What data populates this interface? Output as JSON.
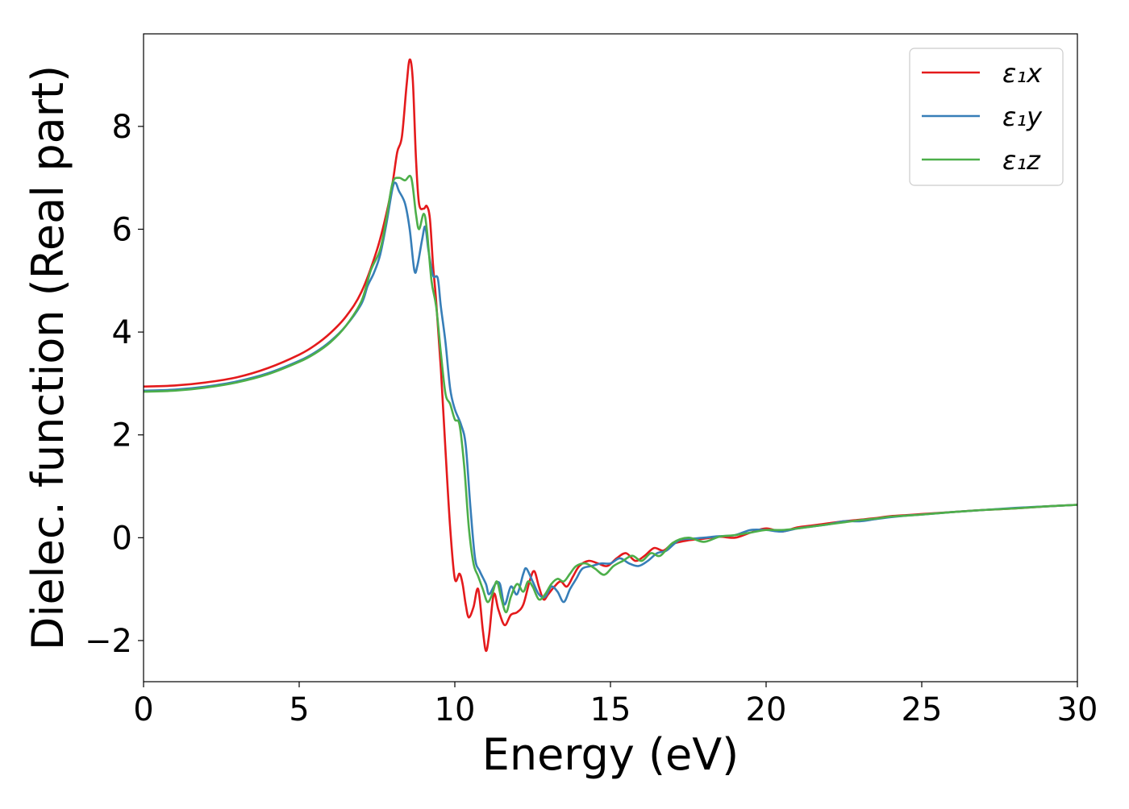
{
  "chart_data": {
    "type": "line",
    "title": "",
    "xlabel": "Energy (eV)",
    "ylabel": "Dielec. function (Real part)",
    "xlim": [
      0,
      30
    ],
    "ylim": [
      -2.8,
      9.8
    ],
    "xticks": [
      {
        "value": 0,
        "label": "0"
      },
      {
        "value": 5,
        "label": "5"
      },
      {
        "value": 10,
        "label": "10"
      },
      {
        "value": 15,
        "label": "15"
      },
      {
        "value": 20,
        "label": "20"
      },
      {
        "value": 25,
        "label": "25"
      },
      {
        "value": 30,
        "label": "30"
      }
    ],
    "yticks": [
      {
        "value": -2,
        "label": "−2"
      },
      {
        "value": 0,
        "label": "0"
      },
      {
        "value": 2,
        "label": "2"
      },
      {
        "value": 4,
        "label": "4"
      },
      {
        "value": 6,
        "label": "6"
      },
      {
        "value": 8,
        "label": "8"
      }
    ],
    "grid": false,
    "legend_position": "top-right",
    "series": [
      {
        "name": "ε₁x",
        "color": "#e41a1c",
        "points": [
          [
            0,
            2.94
          ],
          [
            1,
            2.96
          ],
          [
            2,
            3.02
          ],
          [
            3,
            3.12
          ],
          [
            4,
            3.3
          ],
          [
            5,
            3.56
          ],
          [
            5.5,
            3.74
          ],
          [
            6,
            3.98
          ],
          [
            6.5,
            4.3
          ],
          [
            7,
            4.78
          ],
          [
            7.5,
            5.6
          ],
          [
            7.8,
            6.3
          ],
          [
            8,
            6.9
          ],
          [
            8.15,
            7.5
          ],
          [
            8.3,
            7.8
          ],
          [
            8.45,
            8.8
          ],
          [
            8.55,
            9.3
          ],
          [
            8.65,
            8.9
          ],
          [
            8.75,
            7.4
          ],
          [
            8.85,
            6.5
          ],
          [
            9,
            6.4
          ],
          [
            9.1,
            6.45
          ],
          [
            9.2,
            6.2
          ],
          [
            9.3,
            5.3
          ],
          [
            9.4,
            4.6
          ],
          [
            9.55,
            3.3
          ],
          [
            9.7,
            1.7
          ],
          [
            9.85,
            0.2
          ],
          [
            10,
            -0.8
          ],
          [
            10.15,
            -0.7
          ],
          [
            10.25,
            -0.9
          ],
          [
            10.35,
            -1.3
          ],
          [
            10.45,
            -1.55
          ],
          [
            10.6,
            -1.35
          ],
          [
            10.75,
            -1.0
          ],
          [
            10.9,
            -1.8
          ],
          [
            11,
            -2.2
          ],
          [
            11.1,
            -1.9
          ],
          [
            11.25,
            -1.1
          ],
          [
            11.4,
            -1.4
          ],
          [
            11.6,
            -1.7
          ],
          [
            11.8,
            -1.5
          ],
          [
            12,
            -1.45
          ],
          [
            12.2,
            -1.3
          ],
          [
            12.4,
            -0.85
          ],
          [
            12.55,
            -0.65
          ],
          [
            12.7,
            -0.95
          ],
          [
            12.85,
            -1.2
          ],
          [
            13,
            -1.1
          ],
          [
            13.2,
            -0.95
          ],
          [
            13.4,
            -0.85
          ],
          [
            13.6,
            -0.95
          ],
          [
            13.8,
            -0.75
          ],
          [
            14,
            -0.55
          ],
          [
            14.3,
            -0.45
          ],
          [
            14.6,
            -0.5
          ],
          [
            14.9,
            -0.55
          ],
          [
            15.2,
            -0.4
          ],
          [
            15.5,
            -0.3
          ],
          [
            15.8,
            -0.45
          ],
          [
            16.1,
            -0.35
          ],
          [
            16.4,
            -0.2
          ],
          [
            16.7,
            -0.25
          ],
          [
            17,
            -0.12
          ],
          [
            17.5,
            -0.05
          ],
          [
            18,
            -0.02
          ],
          [
            18.5,
            0.02
          ],
          [
            19,
            0.0
          ],
          [
            19.5,
            0.1
          ],
          [
            20,
            0.18
          ],
          [
            20.5,
            0.12
          ],
          [
            21,
            0.2
          ],
          [
            21.5,
            0.24
          ],
          [
            22,
            0.28
          ],
          [
            22.5,
            0.32
          ],
          [
            23,
            0.35
          ],
          [
            23.5,
            0.38
          ],
          [
            24,
            0.42
          ],
          [
            24.5,
            0.44
          ],
          [
            25,
            0.46
          ],
          [
            25.5,
            0.48
          ],
          [
            26,
            0.5
          ],
          [
            27,
            0.54
          ],
          [
            28,
            0.57
          ],
          [
            29,
            0.61
          ],
          [
            30,
            0.64
          ]
        ]
      },
      {
        "name": "ε₁y",
        "color": "#377eb8",
        "points": [
          [
            0,
            2.86
          ],
          [
            1,
            2.88
          ],
          [
            2,
            2.94
          ],
          [
            3,
            3.04
          ],
          [
            4,
            3.2
          ],
          [
            5,
            3.44
          ],
          [
            5.5,
            3.6
          ],
          [
            6,
            3.82
          ],
          [
            6.5,
            4.12
          ],
          [
            7,
            4.55
          ],
          [
            7.2,
            4.9
          ],
          [
            7.4,
            5.15
          ],
          [
            7.6,
            5.5
          ],
          [
            7.8,
            6.1
          ],
          [
            8,
            6.8
          ],
          [
            8.1,
            6.9
          ],
          [
            8.2,
            6.75
          ],
          [
            8.4,
            6.5
          ],
          [
            8.55,
            6.0
          ],
          [
            8.7,
            5.2
          ],
          [
            8.8,
            5.3
          ],
          [
            8.95,
            5.8
          ],
          [
            9.05,
            6.05
          ],
          [
            9.15,
            5.6
          ],
          [
            9.3,
            5.1
          ],
          [
            9.45,
            5.05
          ],
          [
            9.55,
            4.5
          ],
          [
            9.7,
            3.8
          ],
          [
            9.85,
            2.9
          ],
          [
            10,
            2.5
          ],
          [
            10.2,
            2.2
          ],
          [
            10.35,
            1.8
          ],
          [
            10.5,
            0.6
          ],
          [
            10.65,
            -0.4
          ],
          [
            10.8,
            -0.65
          ],
          [
            11,
            -0.9
          ],
          [
            11.1,
            -1.1
          ],
          [
            11.3,
            -0.9
          ],
          [
            11.45,
            -0.9
          ],
          [
            11.6,
            -1.3
          ],
          [
            11.8,
            -0.95
          ],
          [
            12,
            -1.1
          ],
          [
            12.2,
            -0.7
          ],
          [
            12.3,
            -0.6
          ],
          [
            12.5,
            -0.85
          ],
          [
            12.7,
            -1.1
          ],
          [
            12.9,
            -1.15
          ],
          [
            13.1,
            -0.95
          ],
          [
            13.3,
            -1.05
          ],
          [
            13.5,
            -1.25
          ],
          [
            13.7,
            -1.0
          ],
          [
            13.9,
            -0.8
          ],
          [
            14.1,
            -0.6
          ],
          [
            14.4,
            -0.55
          ],
          [
            14.7,
            -0.5
          ],
          [
            15,
            -0.5
          ],
          [
            15.3,
            -0.4
          ],
          [
            15.6,
            -0.5
          ],
          [
            15.9,
            -0.55
          ],
          [
            16.2,
            -0.45
          ],
          [
            16.5,
            -0.3
          ],
          [
            16.8,
            -0.25
          ],
          [
            17.2,
            -0.05
          ],
          [
            17.6,
            -0.02
          ],
          [
            18,
            0.0
          ],
          [
            18.5,
            0.03
          ],
          [
            19,
            0.05
          ],
          [
            19.5,
            0.15
          ],
          [
            20,
            0.15
          ],
          [
            20.5,
            0.12
          ],
          [
            21,
            0.18
          ],
          [
            21.5,
            0.22
          ],
          [
            22,
            0.26
          ],
          [
            22.5,
            0.32
          ],
          [
            23,
            0.32
          ],
          [
            23.5,
            0.36
          ],
          [
            24,
            0.4
          ],
          [
            24.5,
            0.43
          ],
          [
            25,
            0.45
          ],
          [
            26,
            0.5
          ],
          [
            27,
            0.54
          ],
          [
            28,
            0.58
          ],
          [
            29,
            0.61
          ],
          [
            30,
            0.64
          ]
        ]
      },
      {
        "name": "ε₁z",
        "color": "#4daf4a",
        "points": [
          [
            0,
            2.84
          ],
          [
            1,
            2.86
          ],
          [
            2,
            2.92
          ],
          [
            3,
            3.02
          ],
          [
            4,
            3.18
          ],
          [
            5,
            3.42
          ],
          [
            5.5,
            3.58
          ],
          [
            6,
            3.8
          ],
          [
            6.5,
            4.12
          ],
          [
            7,
            4.6
          ],
          [
            7.3,
            5.2
          ],
          [
            7.6,
            5.6
          ],
          [
            7.8,
            6.2
          ],
          [
            8,
            6.9
          ],
          [
            8.2,
            7.0
          ],
          [
            8.4,
            6.95
          ],
          [
            8.6,
            7.0
          ],
          [
            8.75,
            6.3
          ],
          [
            8.85,
            6.0
          ],
          [
            9,
            6.3
          ],
          [
            9.1,
            6.0
          ],
          [
            9.25,
            5.0
          ],
          [
            9.4,
            4.5
          ],
          [
            9.55,
            3.6
          ],
          [
            9.7,
            2.8
          ],
          [
            9.85,
            2.6
          ],
          [
            10,
            2.3
          ],
          [
            10.15,
            2.2
          ],
          [
            10.3,
            1.4
          ],
          [
            10.45,
            0.2
          ],
          [
            10.6,
            -0.5
          ],
          [
            10.75,
            -0.75
          ],
          [
            10.9,
            -1.0
          ],
          [
            11.05,
            -1.25
          ],
          [
            11.2,
            -1.1
          ],
          [
            11.35,
            -0.85
          ],
          [
            11.5,
            -1.2
          ],
          [
            11.65,
            -1.45
          ],
          [
            11.8,
            -1.15
          ],
          [
            12,
            -0.9
          ],
          [
            12.2,
            -1.05
          ],
          [
            12.35,
            -0.85
          ],
          [
            12.5,
            -0.95
          ],
          [
            12.7,
            -1.2
          ],
          [
            12.9,
            -1.1
          ],
          [
            13.1,
            -0.9
          ],
          [
            13.3,
            -0.8
          ],
          [
            13.5,
            -0.85
          ],
          [
            13.7,
            -0.7
          ],
          [
            13.9,
            -0.55
          ],
          [
            14.2,
            -0.5
          ],
          [
            14.5,
            -0.6
          ],
          [
            14.8,
            -0.72
          ],
          [
            15.1,
            -0.55
          ],
          [
            15.4,
            -0.45
          ],
          [
            15.7,
            -0.35
          ],
          [
            16,
            -0.45
          ],
          [
            16.3,
            -0.3
          ],
          [
            16.6,
            -0.35
          ],
          [
            17,
            -0.1
          ],
          [
            17.5,
            0.0
          ],
          [
            18,
            -0.08
          ],
          [
            18.5,
            0.02
          ],
          [
            19,
            0.05
          ],
          [
            19.5,
            0.1
          ],
          [
            20,
            0.15
          ],
          [
            20.5,
            0.15
          ],
          [
            21,
            0.18
          ],
          [
            21.5,
            0.22
          ],
          [
            22,
            0.26
          ],
          [
            22.5,
            0.3
          ],
          [
            23,
            0.34
          ],
          [
            23.5,
            0.37
          ],
          [
            24,
            0.41
          ],
          [
            24.5,
            0.43
          ],
          [
            25,
            0.45
          ],
          [
            26,
            0.5
          ],
          [
            27,
            0.54
          ],
          [
            28,
            0.57
          ],
          [
            29,
            0.61
          ],
          [
            30,
            0.64
          ]
        ]
      }
    ]
  }
}
